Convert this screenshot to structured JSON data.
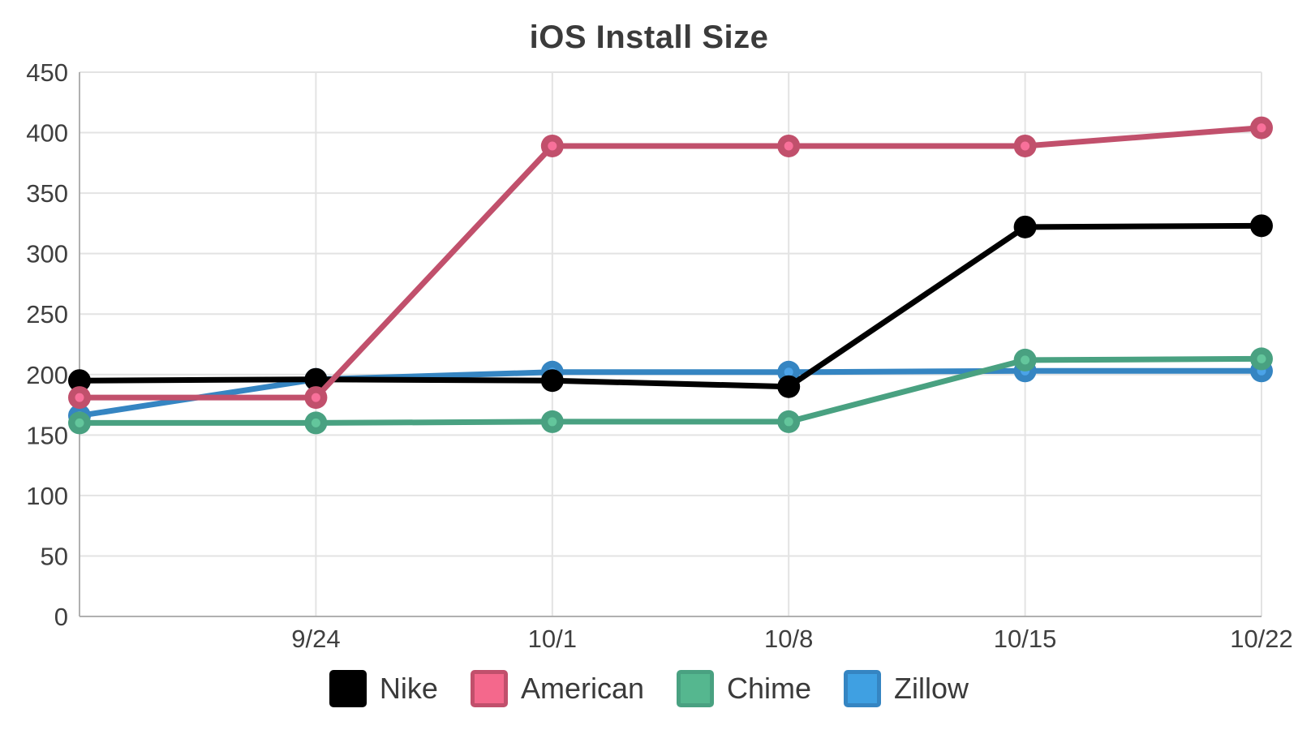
{
  "chart_data": {
    "type": "line",
    "title": "iOS Install Size",
    "x_labels": [
      "",
      "9/24",
      "10/1",
      "10/8",
      "10/15",
      "10/22"
    ],
    "y_axis": {
      "min": 0,
      "max": 450,
      "step": 50
    },
    "grid": true,
    "legend_position": "bottom",
    "colors": {
      "axis": "#b0b0b0",
      "grid": "#e3e3e3",
      "tick_text": "#3f3f3f",
      "title_text": "#3b3b3b"
    },
    "series": [
      {
        "name": "Nike",
        "color": "#000000",
        "marker_center": "#000000",
        "swatch_fill": "#000000",
        "values": [
          195,
          196,
          195,
          190,
          322,
          323
        ]
      },
      {
        "name": "American",
        "color": "#c1506c",
        "marker_center": "#f8709a",
        "swatch_fill": "#f4688c",
        "values": [
          181,
          181,
          389,
          389,
          389,
          404
        ]
      },
      {
        "name": "Chime",
        "color": "#49a181",
        "marker_center": "#63c69c",
        "swatch_fill": "#55b78f",
        "values": [
          160,
          160,
          161,
          161,
          212,
          213
        ]
      },
      {
        "name": "Zillow",
        "color": "#3585c2",
        "marker_center": "#4ba3e8",
        "swatch_fill": "#3fa0e2",
        "values": [
          166,
          196,
          202,
          202,
          203,
          203
        ]
      }
    ]
  }
}
